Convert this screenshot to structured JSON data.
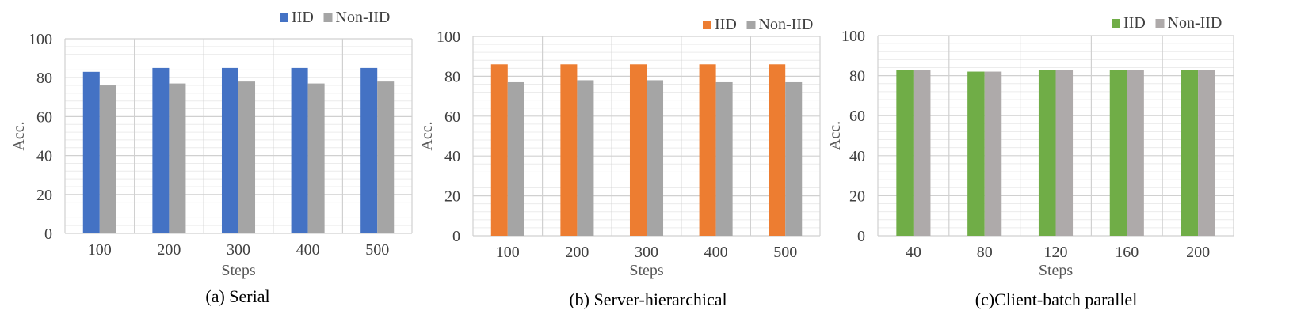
{
  "chart_data": [
    {
      "type": "bar",
      "caption": "(a) Serial",
      "xlabel": "Steps",
      "ylabel": "Acc.",
      "ylim": [
        0,
        100
      ],
      "yticks": [
        0,
        20,
        40,
        60,
        80,
        100
      ],
      "grid": true,
      "legend_position": "top-right",
      "categories": [
        "100",
        "200",
        "300",
        "400",
        "500"
      ],
      "series": [
        {
          "name": "IID",
          "color": "#4472C4",
          "values": [
            83,
            85,
            85,
            85,
            85
          ]
        },
        {
          "name": "Non-IID",
          "color": "#A5A5A5",
          "values": [
            76,
            77,
            78,
            77,
            78
          ]
        }
      ]
    },
    {
      "type": "bar",
      "caption": "(b) Server-hierarchical",
      "xlabel": "Steps",
      "ylabel": "Acc.",
      "ylim": [
        0,
        100
      ],
      "yticks": [
        0,
        20,
        40,
        60,
        80,
        100
      ],
      "grid": true,
      "legend_position": "top-right",
      "categories": [
        "100",
        "200",
        "300",
        "400",
        "500"
      ],
      "series": [
        {
          "name": "IID",
          "color": "#ED7D31",
          "values": [
            86,
            86,
            86,
            86,
            86
          ]
        },
        {
          "name": "Non-IID",
          "color": "#A5A5A5",
          "values": [
            77,
            78,
            78,
            77,
            77
          ]
        }
      ]
    },
    {
      "type": "bar",
      "caption": "(c)Client-batch parallel",
      "xlabel": "Steps",
      "ylabel": "Acc.",
      "ylim": [
        0,
        100
      ],
      "yticks": [
        0,
        20,
        40,
        60,
        80,
        100
      ],
      "grid": true,
      "legend_position": "top-right",
      "categories": [
        "40",
        "80",
        "120",
        "160",
        "200"
      ],
      "series": [
        {
          "name": "IID",
          "color": "#70AD47",
          "values": [
            83,
            82,
            83,
            83,
            83
          ]
        },
        {
          "name": "Non-IID",
          "color": "#AEAAAA",
          "values": [
            83,
            82,
            83,
            83,
            83
          ]
        }
      ]
    }
  ]
}
